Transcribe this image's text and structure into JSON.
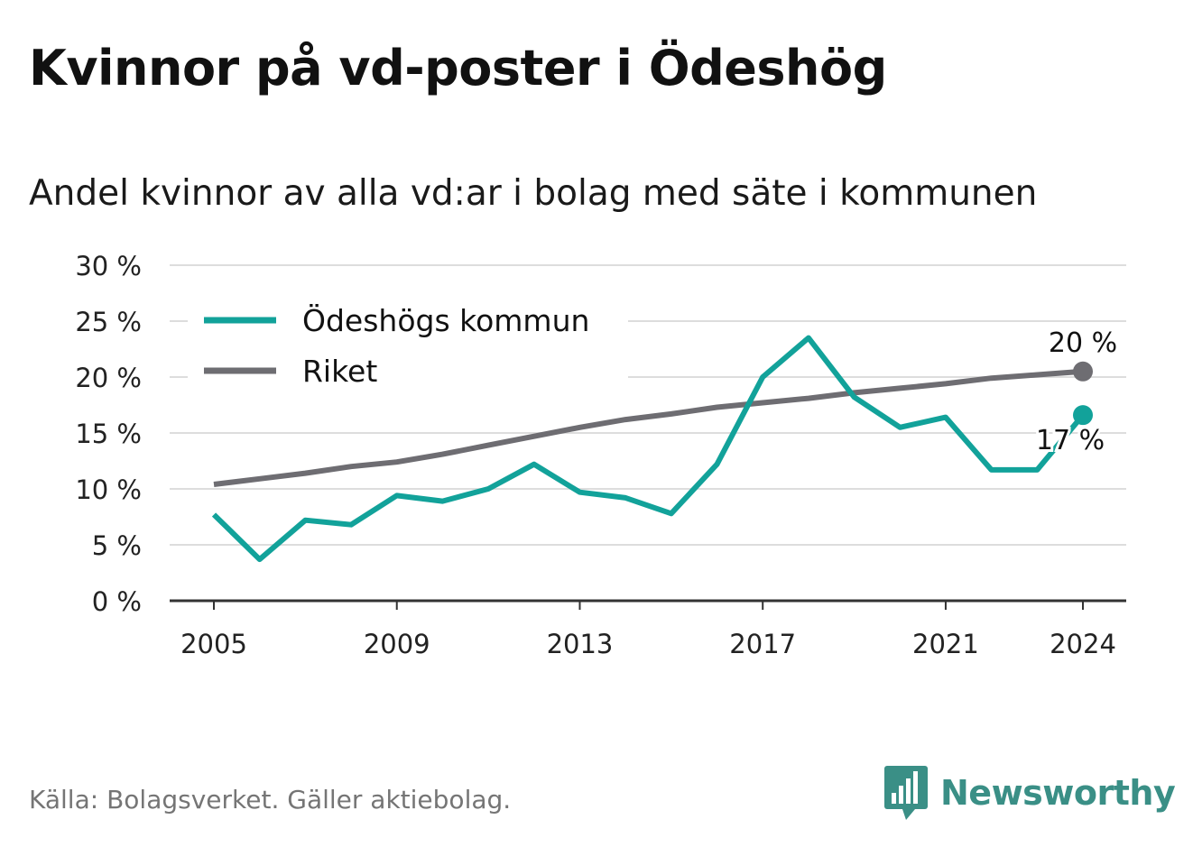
{
  "title": "Kvinnor på vd-poster i Ödeshög",
  "subtitle": "Andel kvinnor av alla vd:ar i bolag med säte i kommunen",
  "source": "Källa: Bolagsverket. Gäller aktiebolag.",
  "brand": {
    "name": "Newsworthy",
    "icon": "newsworthy-logo-icon",
    "color": "#3a8f86"
  },
  "chart_data": {
    "type": "line",
    "x": [
      2005,
      2006,
      2007,
      2008,
      2009,
      2010,
      2011,
      2012,
      2013,
      2014,
      2015,
      2016,
      2017,
      2018,
      2019,
      2020,
      2021,
      2022,
      2023,
      2024
    ],
    "series": [
      {
        "name": "Ödeshögs kommun",
        "color": "#12a29a",
        "values": [
          7.7,
          3.7,
          7.2,
          6.8,
          9.4,
          8.9,
          10.0,
          12.2,
          9.7,
          9.2,
          7.8,
          12.2,
          20.0,
          23.5,
          18.2,
          15.5,
          16.4,
          11.7,
          11.7,
          16.6
        ],
        "end_label": "17 %"
      },
      {
        "name": "Riket",
        "color": "#6e6d72",
        "values": [
          10.4,
          10.9,
          11.4,
          12.0,
          12.4,
          13.1,
          13.9,
          14.7,
          15.5,
          16.2,
          16.7,
          17.3,
          17.7,
          18.1,
          18.6,
          19.0,
          19.4,
          19.9,
          20.2,
          20.5
        ],
        "end_label": "20 %"
      }
    ],
    "ylim": [
      0,
      30
    ],
    "yticks": [
      0,
      5,
      10,
      15,
      20,
      25,
      30
    ],
    "ytick_labels": [
      "0 %",
      "5 %",
      "10 %",
      "15 %",
      "20 %",
      "25 %",
      "30 %"
    ],
    "xticks": [
      2005,
      2009,
      2013,
      2017,
      2021,
      2024
    ],
    "xtick_labels": [
      "2005",
      "2009",
      "2013",
      "2017",
      "2021",
      "2024"
    ],
    "xlabel": "",
    "ylabel": "",
    "grid": true,
    "legend": "top-left"
  }
}
